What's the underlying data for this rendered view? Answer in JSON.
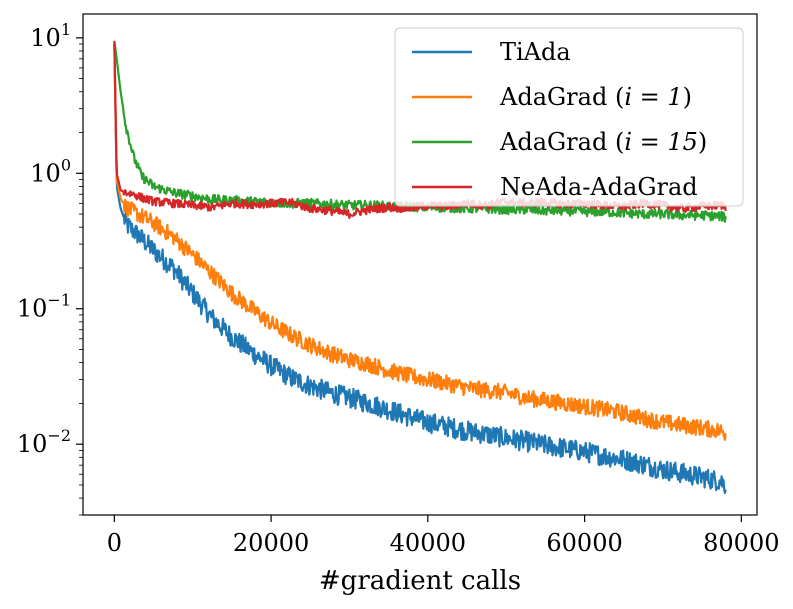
{
  "chart_data": {
    "type": "line",
    "title": "",
    "xlabel": "#gradient calls",
    "ylabel": "",
    "yscale": "log",
    "xlim": [
      -4000,
      82000
    ],
    "ylim": [
      0.003,
      15
    ],
    "x_ticks": [
      0,
      20000,
      40000,
      60000,
      80000
    ],
    "x_tick_labels": [
      "0",
      "20000",
      "40000",
      "60000",
      "80000"
    ],
    "y_ticks": [
      0.01,
      0.1,
      1,
      10
    ],
    "y_tick_labels": [
      {
        "base": "10",
        "exp": "−2"
      },
      {
        "base": "10",
        "exp": "−1"
      },
      {
        "base": "10",
        "exp": "0"
      },
      {
        "base": "10",
        "exp": "1"
      }
    ],
    "legend_position": "top-right",
    "series": [
      {
        "name": "TiAda",
        "color": "#1f77b4",
        "x": [
          0,
          300,
          800,
          1500,
          3000,
          5000,
          7500,
          10000,
          12500,
          15000,
          17500,
          20000,
          22500,
          25000,
          27500,
          30000,
          32500,
          35000,
          37500,
          40000,
          42500,
          45000,
          47500,
          50000,
          52500,
          55000,
          57500,
          60000,
          62500,
          65000,
          67500,
          70000,
          72500,
          75000,
          77500,
          78000
        ],
        "y": [
          9.0,
          0.8,
          0.55,
          0.42,
          0.35,
          0.27,
          0.2,
          0.13,
          0.085,
          0.062,
          0.048,
          0.038,
          0.031,
          0.027,
          0.024,
          0.022,
          0.02,
          0.018,
          0.016,
          0.0145,
          0.0135,
          0.0125,
          0.0118,
          0.0111,
          0.0105,
          0.0098,
          0.0093,
          0.0088,
          0.0082,
          0.0077,
          0.0071,
          0.0065,
          0.0061,
          0.0057,
          0.0053,
          0.005
        ]
      },
      {
        "name": "AdaGrad ($i=1$)",
        "color": "#ff7f0e",
        "x": [
          0,
          300,
          800,
          1500,
          3000,
          5000,
          7500,
          10000,
          12500,
          15000,
          17500,
          20000,
          22500,
          25000,
          27500,
          30000,
          32500,
          35000,
          37500,
          40000,
          42500,
          45000,
          47500,
          50000,
          52500,
          55000,
          57500,
          60000,
          62500,
          65000,
          67500,
          70000,
          72500,
          75000,
          77500,
          78000
        ],
        "y": [
          9.0,
          0.9,
          0.65,
          0.56,
          0.5,
          0.43,
          0.34,
          0.25,
          0.18,
          0.13,
          0.1,
          0.078,
          0.064,
          0.054,
          0.047,
          0.042,
          0.039,
          0.035,
          0.032,
          0.03,
          0.028,
          0.026,
          0.025,
          0.024,
          0.022,
          0.021,
          0.02,
          0.019,
          0.018,
          0.017,
          0.0155,
          0.0145,
          0.0138,
          0.0132,
          0.0125,
          0.012
        ]
      },
      {
        "name": "AdaGrad ($i=15$)",
        "color": "#2ca02c",
        "x": [
          0,
          300,
          800,
          1500,
          2500,
          3500,
          5000,
          7500,
          10000,
          12500,
          15000,
          17500,
          20000,
          22500,
          25000,
          27500,
          30000,
          32500,
          35000,
          37500,
          40000,
          42500,
          45000,
          47500,
          50000,
          52500,
          55000,
          57500,
          60000,
          62500,
          65000,
          67500,
          70000,
          72500,
          75000,
          77500,
          78000
        ],
        "y": [
          9.5,
          7.0,
          4.0,
          2.2,
          1.3,
          0.95,
          0.8,
          0.72,
          0.68,
          0.64,
          0.63,
          0.62,
          0.61,
          0.6,
          0.6,
          0.59,
          0.58,
          0.58,
          0.57,
          0.57,
          0.56,
          0.56,
          0.55,
          0.55,
          0.54,
          0.54,
          0.53,
          0.53,
          0.52,
          0.52,
          0.51,
          0.5,
          0.5,
          0.49,
          0.49,
          0.48,
          0.47
        ]
      },
      {
        "name": "NeAda-AdaGrad",
        "color": "#d62728",
        "x": [
          0,
          300,
          800,
          1500,
          2500,
          3500,
          5000,
          7500,
          10000,
          12500,
          15000,
          17500,
          20000,
          22500,
          25000,
          27500,
          30000,
          32500,
          35000,
          37500,
          40000,
          42500,
          45000,
          47500,
          50000,
          52500,
          55000,
          57500,
          60000,
          62500,
          65000,
          67500,
          70000,
          72500,
          75000,
          77500,
          78000
        ],
        "y": [
          9.5,
          1.0,
          0.75,
          0.72,
          0.7,
          0.66,
          0.62,
          0.6,
          0.58,
          0.56,
          0.6,
          0.59,
          0.6,
          0.61,
          0.55,
          0.53,
          0.5,
          0.54,
          0.56,
          0.55,
          0.58,
          0.57,
          0.6,
          0.58,
          0.62,
          0.6,
          0.61,
          0.59,
          0.6,
          0.58,
          0.57,
          0.6,
          0.58,
          0.55,
          0.57,
          0.58,
          0.56
        ]
      }
    ]
  }
}
